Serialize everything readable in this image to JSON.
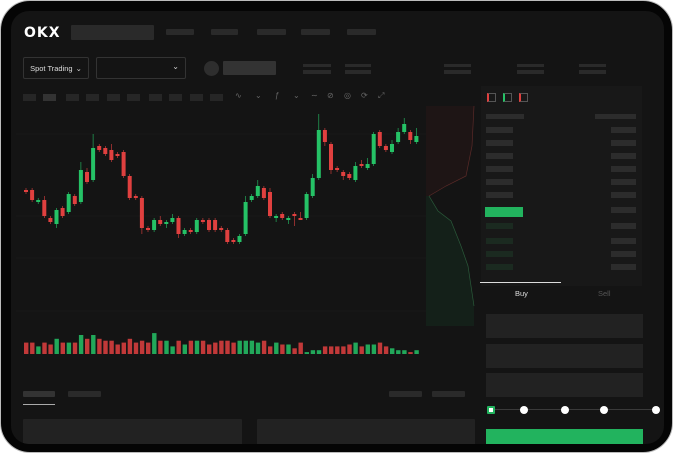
{
  "header": {
    "logo": "OKX"
  },
  "market": {
    "mode_label": "Spot Trading",
    "mode_icon": "chevron-down-icon",
    "pair_icon": "chevron-down-icon"
  },
  "toolbar": {
    "icons": [
      "indicator-icon",
      "chart-type-icon",
      "fx-icon",
      "line-tool-icon",
      "pencil-icon",
      "settings-icon",
      "refresh-icon",
      "fullscreen-icon"
    ]
  },
  "orderbook": {
    "view_icons": [
      "book-both-icon",
      "book-buy-icon",
      "book-sell-icon"
    ]
  },
  "trade": {
    "tabs": [
      {
        "label": "Buy",
        "active": true
      },
      {
        "label": "Sell",
        "active": false
      }
    ],
    "slider_percent": 0,
    "submit_color": "#22b35e"
  },
  "colors": {
    "up": "#25c266",
    "down": "#e0403f",
    "background": "#141414"
  },
  "chart_data": {
    "type": "candlestick",
    "series_ohlc": [
      [
        58,
        59,
        56,
        57
      ],
      [
        58,
        59,
        52,
        53
      ],
      [
        52,
        54,
        51,
        53
      ],
      [
        53,
        55,
        44,
        45
      ],
      [
        44,
        45,
        41,
        42
      ],
      [
        41,
        49,
        39,
        48
      ],
      [
        49,
        50,
        44,
        45
      ],
      [
        47,
        57,
        46,
        56
      ],
      [
        55,
        56,
        50,
        51
      ],
      [
        52,
        72,
        51,
        68
      ],
      [
        67,
        69,
        61,
        62
      ],
      [
        63,
        86,
        62,
        79
      ],
      [
        80,
        81,
        77,
        78
      ],
      [
        79,
        80,
        75,
        76
      ],
      [
        78,
        81,
        72,
        73
      ],
      [
        76,
        77,
        74,
        75
      ],
      [
        77,
        78,
        64,
        65
      ],
      [
        65,
        66,
        53,
        54
      ],
      [
        55,
        56,
        53,
        54
      ],
      [
        54,
        55,
        36,
        39
      ],
      [
        39,
        40,
        37,
        38
      ],
      [
        38,
        44,
        37,
        43
      ],
      [
        43,
        45,
        40,
        41
      ],
      [
        41,
        43,
        39,
        42
      ],
      [
        42,
        46,
        41,
        44
      ],
      [
        44,
        45,
        34,
        36
      ],
      [
        36,
        39,
        35,
        38
      ],
      [
        38,
        39,
        36,
        37
      ],
      [
        37,
        44,
        36,
        43
      ],
      [
        43,
        44,
        41,
        42
      ],
      [
        43,
        44,
        37,
        38
      ],
      [
        43,
        44,
        37,
        38
      ],
      [
        39,
        40,
        37,
        38
      ],
      [
        38,
        39,
        31,
        32
      ],
      [
        33,
        34,
        31,
        32
      ],
      [
        32,
        36,
        31,
        35
      ],
      [
        36,
        55,
        35,
        52
      ],
      [
        53,
        56,
        52,
        55
      ],
      [
        55,
        63,
        54,
        60
      ],
      [
        59,
        60,
        53,
        54
      ],
      [
        57,
        59,
        44,
        45
      ],
      [
        44,
        46,
        42,
        45
      ],
      [
        46,
        47,
        43,
        44
      ],
      [
        43,
        45,
        41,
        44
      ],
      [
        46,
        47,
        40,
        45
      ],
      [
        44,
        47,
        43,
        43
      ],
      [
        44,
        57,
        43,
        56
      ],
      [
        55,
        66,
        54,
        64
      ],
      [
        64,
        96,
        63,
        88
      ],
      [
        88,
        89,
        80,
        82
      ],
      [
        81,
        82,
        66,
        68
      ],
      [
        69,
        70,
        67,
        68
      ],
      [
        67,
        68,
        63,
        65
      ],
      [
        66,
        67,
        63,
        64
      ],
      [
        63,
        72,
        62,
        70
      ],
      [
        71,
        73,
        69,
        70
      ],
      [
        69,
        74,
        68,
        71
      ],
      [
        71,
        87,
        70,
        86
      ],
      [
        87,
        88,
        79,
        80
      ],
      [
        80,
        81,
        77,
        78
      ],
      [
        77,
        83,
        76,
        81
      ],
      [
        82,
        89,
        81,
        87
      ],
      [
        87,
        94,
        86,
        91
      ],
      [
        87,
        88,
        81,
        83
      ],
      [
        82,
        89,
        81,
        85
      ]
    ],
    "volume": [
      6,
      6,
      4,
      6,
      5,
      8,
      6,
      6,
      6,
      10,
      8,
      10,
      8,
      7,
      7,
      5,
      6,
      8,
      6,
      7,
      6,
      11,
      7,
      7,
      4,
      7,
      5,
      7,
      7,
      7,
      5,
      6,
      7,
      7,
      6,
      7,
      7,
      7,
      6,
      7,
      4,
      6,
      5,
      5,
      3,
      6,
      1,
      2,
      2,
      4,
      4,
      4,
      4,
      5,
      6,
      4,
      5,
      5,
      6,
      4,
      3,
      2,
      2,
      1,
      2
    ]
  }
}
